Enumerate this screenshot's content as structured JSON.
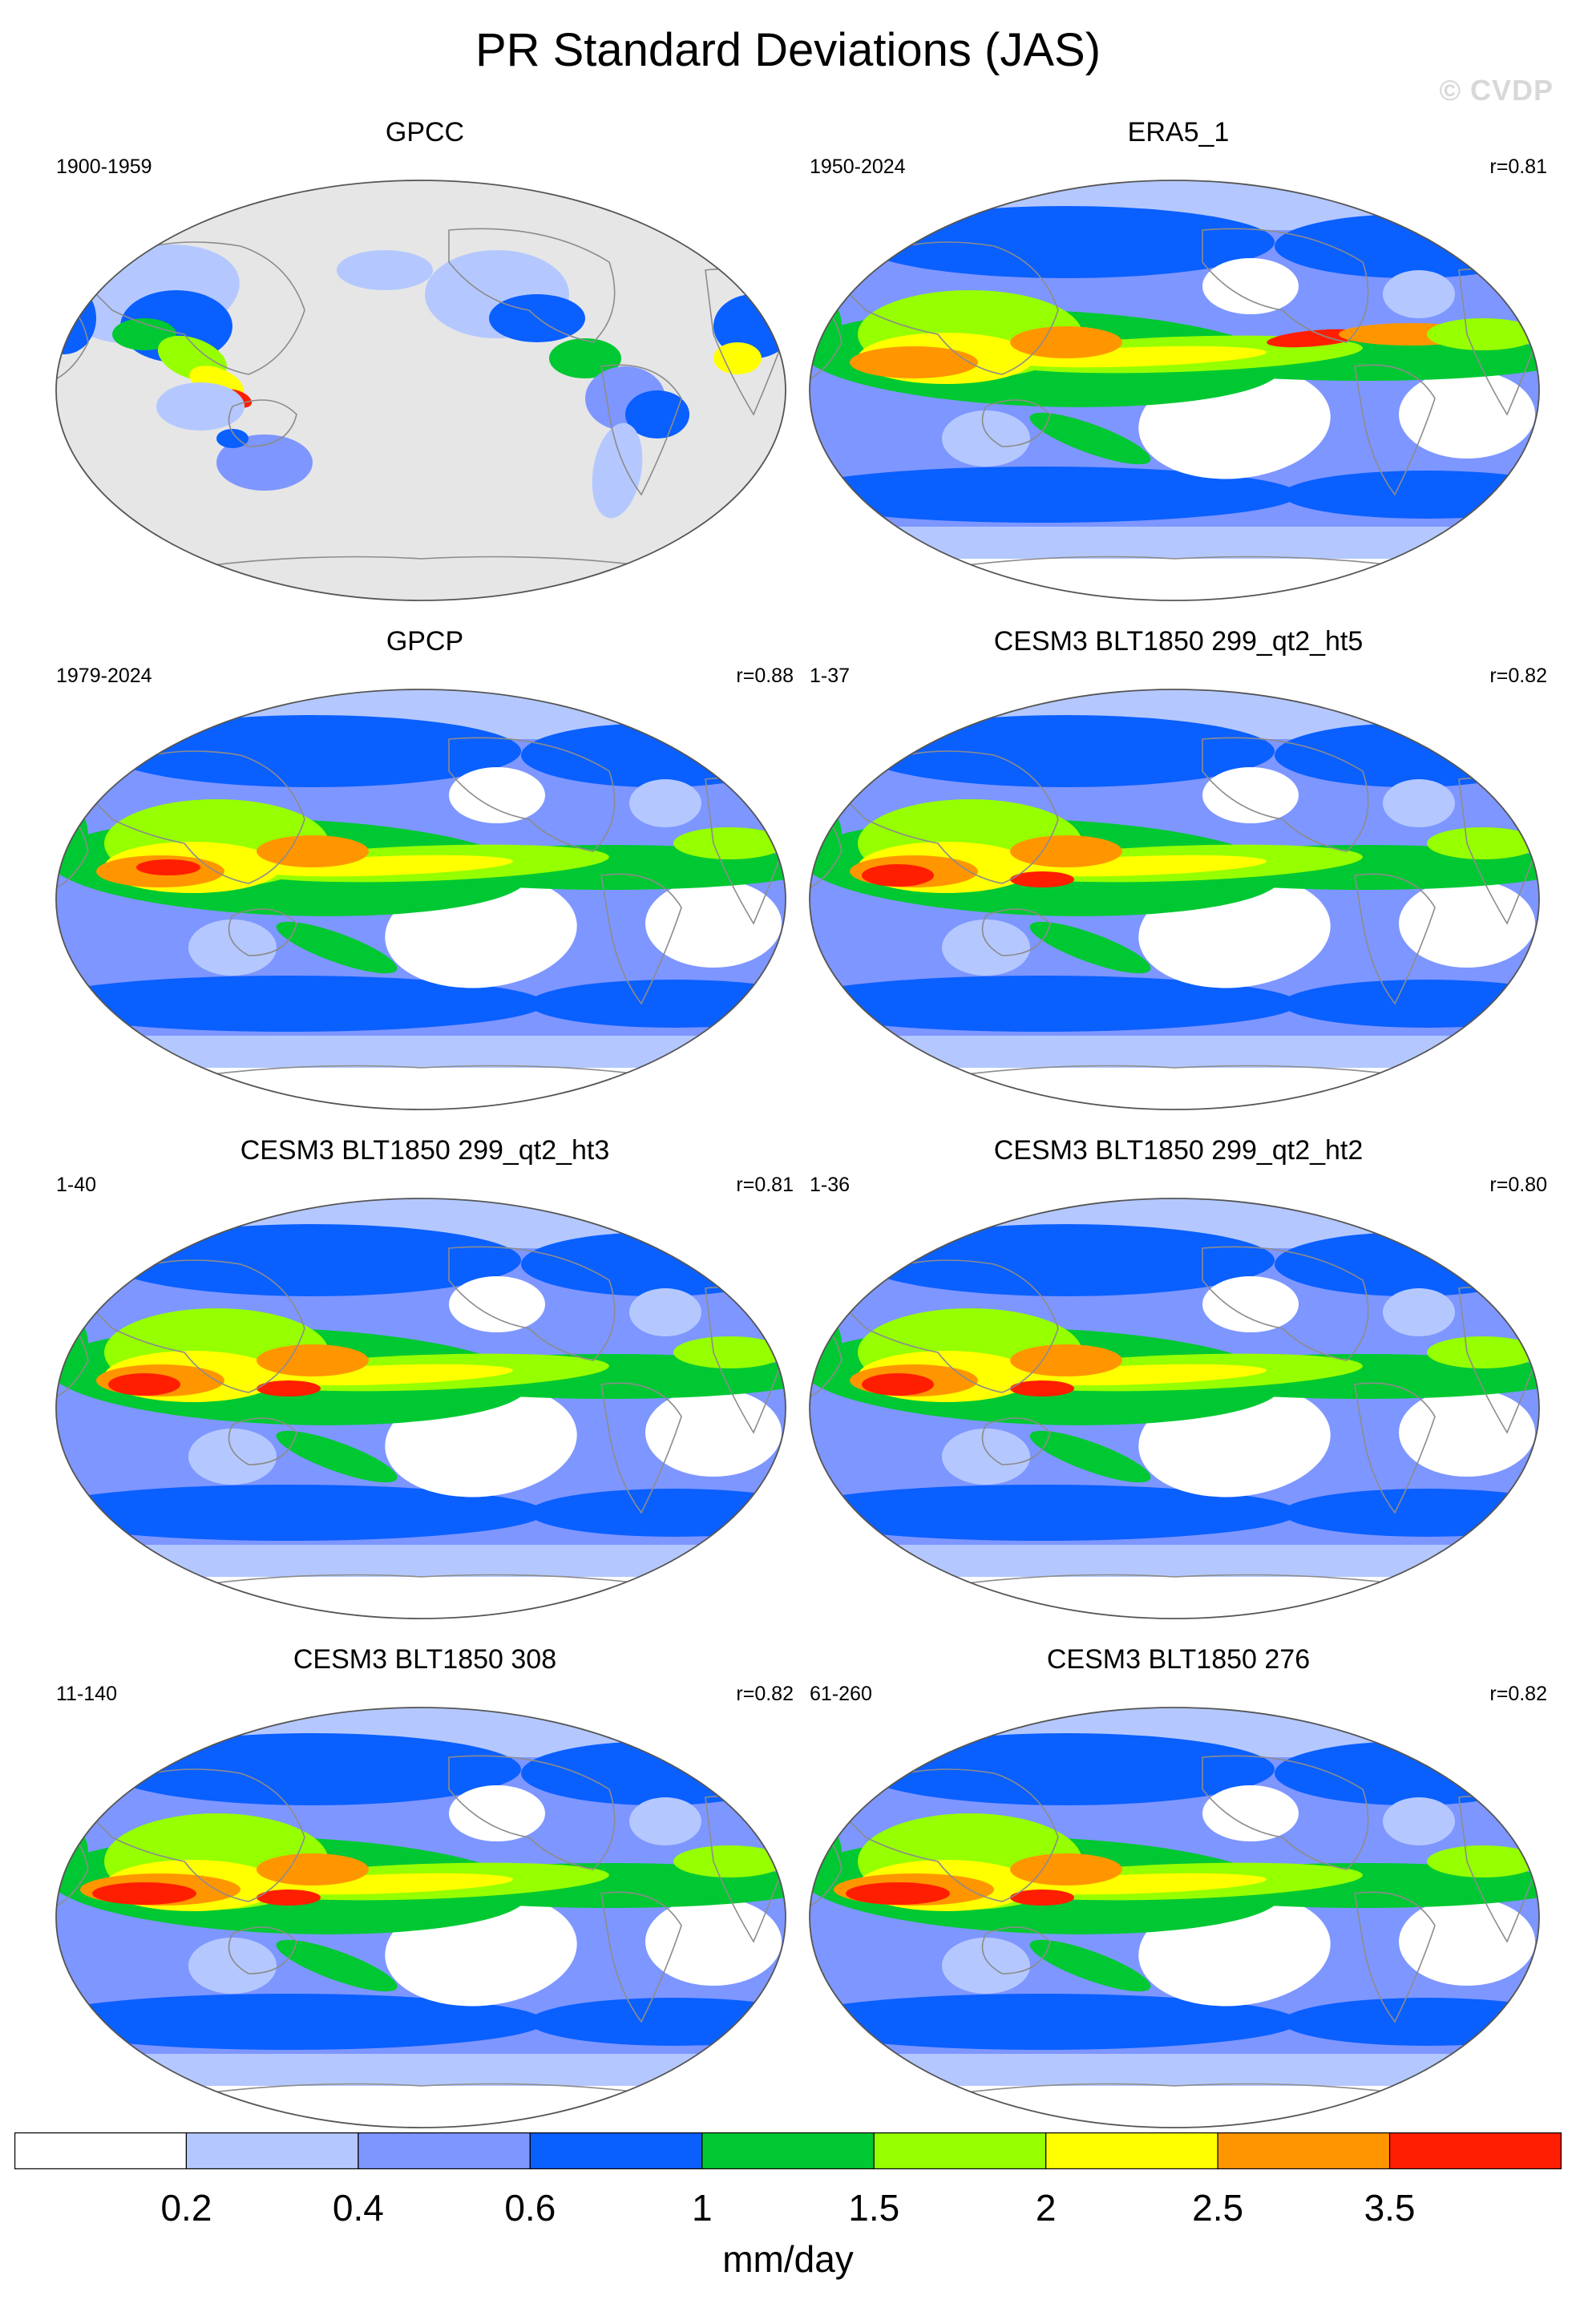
{
  "title": "PR Standard Deviations (JAS)",
  "watermark": "© CVDP",
  "panels": [
    {
      "title": "GPCC",
      "years": "1900-1959",
      "corr": "",
      "style": "obs_land"
    },
    {
      "title": "ERA5_1",
      "years": "1950-2024",
      "corr": "r=0.81",
      "style": "reanalysis"
    },
    {
      "title": "GPCP",
      "years": "1979-2024",
      "corr": "r=0.88",
      "style": "satellite"
    },
    {
      "title": "CESM3 BLT1850 299_qt2_ht5",
      "years": "1-37",
      "corr": "r=0.82",
      "style": "model"
    },
    {
      "title": "CESM3 BLT1850 299_qt2_ht3",
      "years": "1-40",
      "corr": "r=0.81",
      "style": "model"
    },
    {
      "title": "CESM3 BLT1850 299_qt2_ht2",
      "years": "1-36",
      "corr": "r=0.80",
      "style": "model"
    },
    {
      "title": "CESM3 BLT1850 308",
      "years": "11-140",
      "corr": "r=0.82",
      "style": "model_strong"
    },
    {
      "title": "CESM3 BLT1850 276",
      "years": "61-260",
      "corr": "r=0.82",
      "style": "model_strong"
    }
  ],
  "colorbar": {
    "colors": [
      "#ffffff",
      "#b4c8ff",
      "#7e96ff",
      "#0a5fff",
      "#00c832",
      "#96ff00",
      "#ffff00",
      "#ff9600",
      "#ff1e00"
    ],
    "labels": [
      "0.2",
      "0.4",
      "0.6",
      "1",
      "1.5",
      "2",
      "2.5",
      "3.5"
    ],
    "units": "mm/day"
  },
  "colors": {
    "land_mask": "#e6e6e6",
    "coastline": "#8c8c8c"
  }
}
